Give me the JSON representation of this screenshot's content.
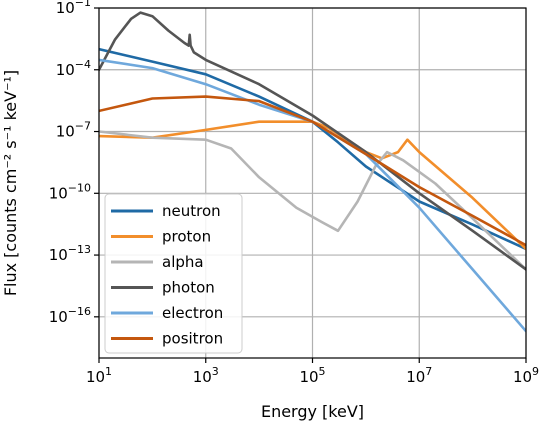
{
  "chart_data": {
    "type": "line",
    "title": "",
    "xlabel": "Energy [keV]",
    "ylabel": "Flux [counts cm⁻² s⁻¹ keV⁻¹]",
    "xscale": "log",
    "yscale": "log",
    "xlim": [
      10,
      1000000000
    ],
    "ylim": [
      1e-18,
      0.1
    ],
    "grid": true,
    "legend_position": "lower-left",
    "x_ticks": [
      {
        "value": 10,
        "base": "10",
        "exp": "1"
      },
      {
        "value": 1000,
        "base": "10",
        "exp": "3"
      },
      {
        "value": 100000,
        "base": "10",
        "exp": "5"
      },
      {
        "value": 10000000,
        "base": "10",
        "exp": "7"
      },
      {
        "value": 1000000000,
        "base": "10",
        "exp": "9"
      }
    ],
    "y_ticks": [
      {
        "value": 1e-16,
        "base": "10",
        "exp": "−16"
      },
      {
        "value": 1e-13,
        "base": "10",
        "exp": "−13"
      },
      {
        "value": 1e-10,
        "base": "10",
        "exp": "−10"
      },
      {
        "value": 1e-07,
        "base": "10",
        "exp": "−7"
      },
      {
        "value": 0.0001,
        "base": "10",
        "exp": "−4"
      },
      {
        "value": 0.1,
        "base": "10",
        "exp": "−1"
      }
    ],
    "series": [
      {
        "name": "neutron",
        "color": "#1f6aa5",
        "x": [
          10,
          100,
          1000,
          10000,
          100000,
          300000,
          1000000,
          10000000,
          100000000,
          1000000000
        ],
        "y": [
          0.001,
          0.00025,
          6e-05,
          5e-06,
          3e-07,
          3e-08,
          2e-09,
          4e-11,
          3e-12,
          2e-13
        ]
      },
      {
        "name": "proton",
        "color": "#f28e2b",
        "x": [
          10,
          100,
          1000,
          10000,
          100000,
          200000,
          1000000,
          2000000,
          4000000,
          6000000,
          10000000,
          100000000,
          1000000000
        ],
        "y": [
          6e-08,
          5e-08,
          1.2e-07,
          3e-07,
          3e-07,
          1.5e-07,
          1e-08,
          5e-09,
          1e-08,
          4e-08,
          1e-08,
          6e-11,
          2e-13
        ]
      },
      {
        "name": "alpha",
        "color": "#b5b5b5",
        "x": [
          10,
          100,
          1000,
          3000,
          10000,
          50000,
          150000,
          300000,
          700000,
          1500000,
          2500000,
          5000000,
          20000000,
          100000000,
          1000000000
        ],
        "y": [
          1e-07,
          5e-08,
          4e-08,
          1.5e-08,
          6e-10,
          2e-11,
          4e-12,
          1.5e-12,
          4e-11,
          2e-09,
          1e-08,
          4e-09,
          3e-10,
          6e-12,
          2e-14
        ]
      },
      {
        "name": "photon",
        "color": "#555555",
        "x": [
          10,
          20,
          40,
          60,
          100,
          200,
          400,
          480,
          500,
          520,
          600,
          1000,
          10000,
          100000,
          1000000,
          10000000,
          100000000,
          1000000000
        ],
        "y": [
          0.0001,
          0.003,
          0.03,
          0.06,
          0.04,
          0.008,
          0.002,
          0.0015,
          0.005,
          0.0015,
          0.0007,
          0.0003,
          2e-05,
          6e-07,
          1e-08,
          1e-10,
          1.5e-12,
          2e-14
        ]
      },
      {
        "name": "electron",
        "color": "#6fa8dc",
        "x": [
          10,
          100,
          1000,
          10000,
          100000,
          1000000,
          10000000,
          100000000,
          1000000000
        ],
        "y": [
          0.0003,
          0.00012,
          2e-05,
          2e-06,
          3e-07,
          8e-09,
          2e-11,
          2e-14,
          2e-17
        ]
      },
      {
        "name": "positron",
        "color": "#c4570e",
        "x": [
          10,
          100,
          1000,
          10000,
          100000,
          1000000,
          10000000,
          100000000,
          1000000000
        ],
        "y": [
          1e-06,
          4e-06,
          5e-06,
          3e-06,
          3e-07,
          8e-09,
          2e-10,
          8e-12,
          3e-13
        ]
      }
    ]
  }
}
